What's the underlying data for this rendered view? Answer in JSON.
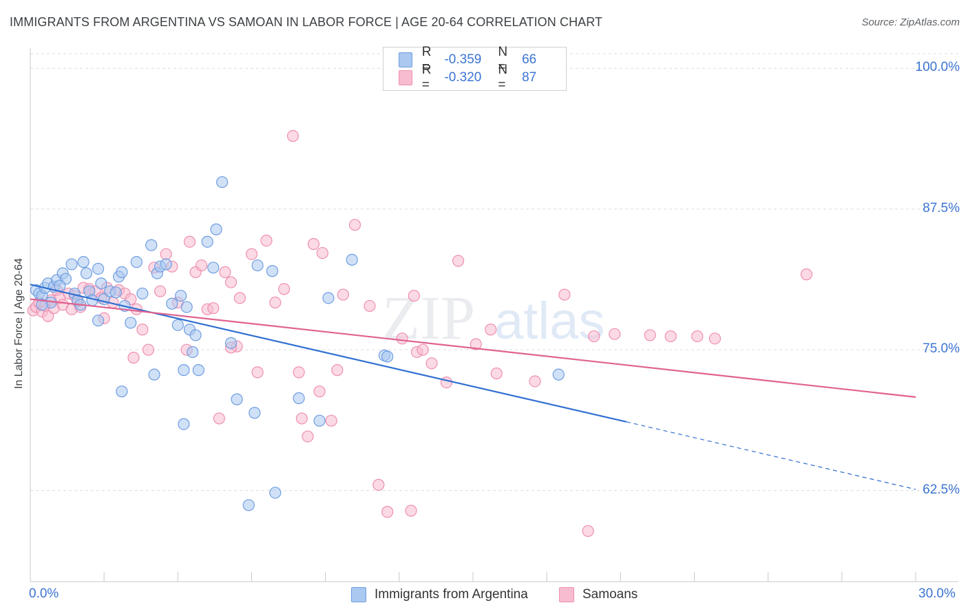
{
  "header": {
    "title": "IMMIGRANTS FROM ARGENTINA VS SAMOAN IN LABOR FORCE | AGE 20-64 CORRELATION CHART",
    "source": "Source: ZipAtlas.com"
  },
  "watermark": {
    "zip": "ZIP",
    "atlas": "atlas"
  },
  "legend": {
    "rows": [
      {
        "r_label": "R =",
        "r_value": "-0.359",
        "n_label": "N =",
        "n_value": "66"
      },
      {
        "r_label": "R =",
        "r_value": "-0.320",
        "n_label": "N =",
        "n_value": "87"
      }
    ]
  },
  "bottom_legend": {
    "series_a": "Immigrants from Argentina",
    "series_b": "Samoans"
  },
  "chart_data": {
    "type": "scatter",
    "title": "IMMIGRANTS FROM ARGENTINA VS SAMOAN IN LABOR FORCE | AGE 20-64 CORRELATION CHART",
    "xlabel": "",
    "ylabel": "In Labor Force | Age 20-64",
    "xlim": [
      0,
      30
    ],
    "ylim": [
      54.4,
      101.8
    ],
    "x_tick_labels": [
      "0.0%",
      "30.0%"
    ],
    "y_ticks": [
      62.5,
      75.0,
      87.5,
      100.0
    ],
    "y_tick_labels": [
      "62.5%",
      "75.0%",
      "87.5%",
      "100.0%"
    ],
    "grid": true,
    "legend_position": "top-center",
    "colors": {
      "series_a_fill": "#aac8f0",
      "series_a_stroke": "#6f9de0",
      "series_a_line": "#2f6fd1",
      "series_b_fill": "#f7bcd0",
      "series_b_stroke": "#ee8fb0",
      "series_b_line": "#e0628f",
      "tick_text": "#3b74d3"
    },
    "series": [
      {
        "name": "Immigrants from Argentina",
        "trend": {
          "x0": 0,
          "y0": 80.8,
          "x1": 20.2,
          "y1": 68.6,
          "dash_to_x": 30,
          "dash_to_y": 62.6
        },
        "points": [
          [
            0.2,
            80.3
          ],
          [
            0.3,
            80.0
          ],
          [
            0.4,
            79.8
          ],
          [
            0.5,
            80.5
          ],
          [
            0.6,
            80.9
          ],
          [
            0.8,
            80.6
          ],
          [
            0.7,
            79.2
          ],
          [
            0.4,
            79.0
          ],
          [
            0.9,
            81.2
          ],
          [
            1.1,
            81.8
          ],
          [
            1.2,
            81.3
          ],
          [
            1.0,
            80.7
          ],
          [
            1.4,
            82.6
          ],
          [
            1.5,
            80.0
          ],
          [
            1.6,
            79.4
          ],
          [
            1.8,
            82.8
          ],
          [
            1.9,
            81.8
          ],
          [
            2.0,
            80.2
          ],
          [
            2.1,
            79.4
          ],
          [
            1.7,
            79.0
          ],
          [
            2.3,
            82.2
          ],
          [
            2.4,
            80.9
          ],
          [
            2.5,
            79.5
          ],
          [
            2.7,
            80.2
          ],
          [
            2.9,
            80.1
          ],
          [
            3.0,
            81.5
          ],
          [
            3.1,
            81.9
          ],
          [
            3.4,
            77.4
          ],
          [
            3.2,
            78.9
          ],
          [
            2.3,
            77.6
          ],
          [
            3.6,
            82.8
          ],
          [
            3.8,
            80.0
          ],
          [
            4.1,
            84.3
          ],
          [
            4.3,
            81.8
          ],
          [
            4.4,
            82.4
          ],
          [
            4.6,
            82.6
          ],
          [
            4.8,
            79.1
          ],
          [
            5.1,
            79.8
          ],
          [
            5.3,
            78.8
          ],
          [
            5.0,
            77.2
          ],
          [
            5.4,
            76.8
          ],
          [
            5.6,
            76.3
          ],
          [
            5.5,
            74.8
          ],
          [
            5.2,
            73.2
          ],
          [
            5.7,
            73.2
          ],
          [
            4.2,
            72.8
          ],
          [
            6.2,
            82.3
          ],
          [
            6.0,
            84.6
          ],
          [
            6.3,
            85.7
          ],
          [
            6.5,
            89.9
          ],
          [
            6.8,
            75.6
          ],
          [
            7.7,
            82.5
          ],
          [
            7.0,
            70.6
          ],
          [
            7.6,
            69.4
          ],
          [
            8.2,
            82.0
          ],
          [
            9.1,
            70.7
          ],
          [
            9.8,
            68.7
          ],
          [
            10.1,
            79.6
          ],
          [
            3.1,
            71.3
          ],
          [
            5.2,
            68.4
          ],
          [
            10.9,
            83.0
          ],
          [
            12.0,
            74.5
          ],
          [
            12.1,
            74.4
          ],
          [
            17.9,
            72.8
          ],
          [
            7.4,
            61.2
          ],
          [
            8.3,
            62.3
          ]
        ]
      },
      {
        "name": "Samoans",
        "trend": {
          "x0": 0,
          "y0": 79.5,
          "x1": 30,
          "y1": 70.8
        },
        "points": [
          [
            0.1,
            78.5
          ],
          [
            0.2,
            78.8
          ],
          [
            0.3,
            79.2
          ],
          [
            0.4,
            78.4
          ],
          [
            0.5,
            78.9
          ],
          [
            0.6,
            78.0
          ],
          [
            0.7,
            79.4
          ],
          [
            0.8,
            78.7
          ],
          [
            0.9,
            80.3
          ],
          [
            1.0,
            79.6
          ],
          [
            1.1,
            79.0
          ],
          [
            1.3,
            80.0
          ],
          [
            1.4,
            78.6
          ],
          [
            1.5,
            79.8
          ],
          [
            1.6,
            79.3
          ],
          [
            1.7,
            78.8
          ],
          [
            1.8,
            80.5
          ],
          [
            2.0,
            80.4
          ],
          [
            2.2,
            80.2
          ],
          [
            2.4,
            79.6
          ],
          [
            2.5,
            77.8
          ],
          [
            2.6,
            80.5
          ],
          [
            2.8,
            79.2
          ],
          [
            3.0,
            80.3
          ],
          [
            3.2,
            80.0
          ],
          [
            3.4,
            79.5
          ],
          [
            3.6,
            78.6
          ],
          [
            3.8,
            76.8
          ],
          [
            3.5,
            74.3
          ],
          [
            4.0,
            75.0
          ],
          [
            4.2,
            82.3
          ],
          [
            4.4,
            80.2
          ],
          [
            4.6,
            83.5
          ],
          [
            4.8,
            82.4
          ],
          [
            5.0,
            79.2
          ],
          [
            5.3,
            75.0
          ],
          [
            5.4,
            84.6
          ],
          [
            5.6,
            81.9
          ],
          [
            5.8,
            82.5
          ],
          [
            6.0,
            78.6
          ],
          [
            6.2,
            78.7
          ],
          [
            6.4,
            68.9
          ],
          [
            6.6,
            81.9
          ],
          [
            6.8,
            81.0
          ],
          [
            7.1,
            79.6
          ],
          [
            7.0,
            75.3
          ],
          [
            7.5,
            83.5
          ],
          [
            7.7,
            73.0
          ],
          [
            8.0,
            84.7
          ],
          [
            8.3,
            79.2
          ],
          [
            8.6,
            80.4
          ],
          [
            8.9,
            94.0
          ],
          [
            9.2,
            68.9
          ],
          [
            9.4,
            67.3
          ],
          [
            9.6,
            84.4
          ],
          [
            9.9,
            83.6
          ],
          [
            9.1,
            73.0
          ],
          [
            9.8,
            71.3
          ],
          [
            10.4,
            73.2
          ],
          [
            10.6,
            79.9
          ],
          [
            11.0,
            86.1
          ],
          [
            11.5,
            78.9
          ],
          [
            11.8,
            63.0
          ],
          [
            12.6,
            76.0
          ],
          [
            13.0,
            79.8
          ],
          [
            12.9,
            60.7
          ],
          [
            13.1,
            74.8
          ],
          [
            13.3,
            75.0
          ],
          [
            13.6,
            73.8
          ],
          [
            14.1,
            72.1
          ],
          [
            14.5,
            82.9
          ],
          [
            15.1,
            75.5
          ],
          [
            15.6,
            76.8
          ],
          [
            15.8,
            72.9
          ],
          [
            17.1,
            72.2
          ],
          [
            18.1,
            79.9
          ],
          [
            19.1,
            76.2
          ],
          [
            19.8,
            76.4
          ],
          [
            21.0,
            76.3
          ],
          [
            21.7,
            76.2
          ],
          [
            22.6,
            76.2
          ],
          [
            23.2,
            76.0
          ],
          [
            26.3,
            81.7
          ],
          [
            18.9,
            58.9
          ],
          [
            12.1,
            60.6
          ],
          [
            10.2,
            68.7
          ],
          [
            6.8,
            75.2
          ]
        ]
      }
    ]
  }
}
